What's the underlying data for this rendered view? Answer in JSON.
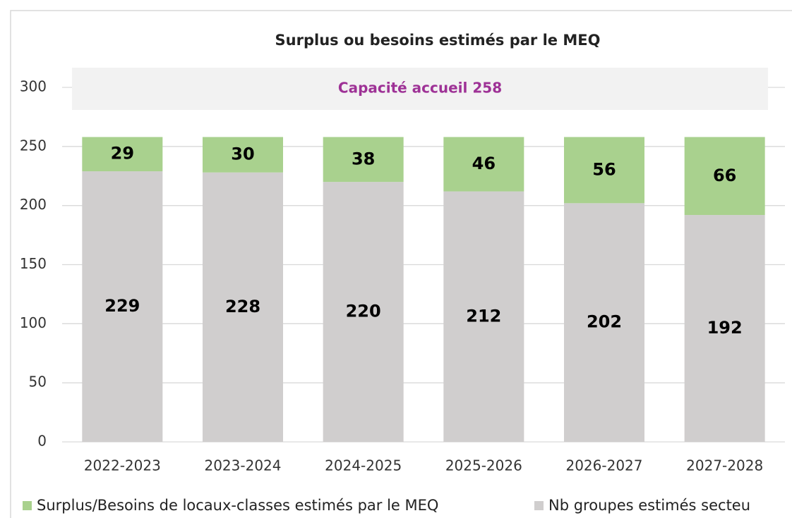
{
  "chart_data": {
    "type": "stacked_bar",
    "title": "Surplus ou besoins estimés par le MEQ",
    "annotations": [
      "Capacité accueil 258"
    ],
    "categories": [
      "2022-2023",
      "2023-2024",
      "2024-2025",
      "2025-2026",
      "2026-2027",
      "2027-2028"
    ],
    "series": [
      {
        "name": "Surplus/Besoins de locaux-classes estimés par le MEQ",
        "color": "#a9d18e",
        "values": [
          29,
          30,
          38,
          46,
          56,
          66
        ]
      },
      {
        "name": "Nb groupes estimés secteu",
        "color": "#d0cece",
        "values": [
          229,
          228,
          220,
          212,
          202,
          192
        ]
      }
    ],
    "ylim": [
      0,
      300
    ],
    "yticks": [
      0,
      50,
      100,
      150,
      200,
      250,
      300
    ],
    "grid": true,
    "legend": "bottom"
  }
}
